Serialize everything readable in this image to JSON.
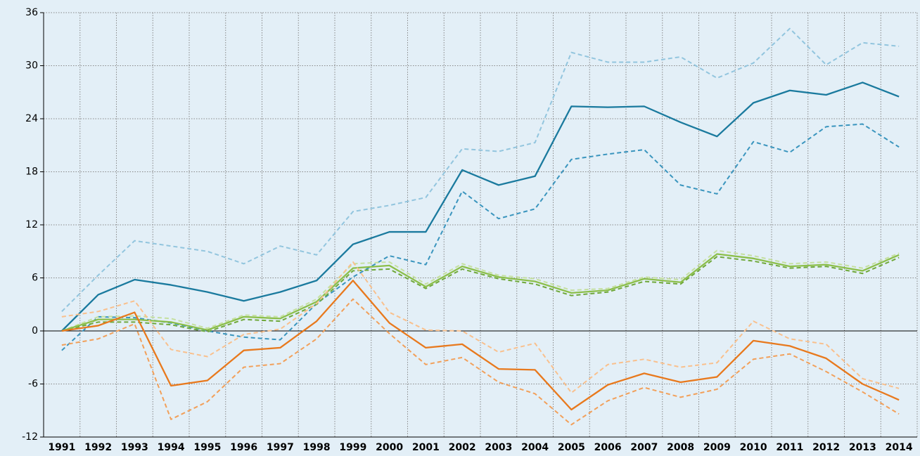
{
  "chart_data": {
    "type": "line",
    "categories": [
      "1991",
      "1992",
      "1993",
      "1994",
      "1995",
      "1996",
      "1997",
      "1998",
      "1999",
      "2000",
      "2001",
      "2002",
      "2003",
      "2004",
      "2005",
      "2006",
      "2007",
      "2008",
      "2009",
      "2010",
      "2011",
      "2012",
      "2013",
      "2014"
    ],
    "series": [
      {
        "color": "#92c5de",
        "dashed": true,
        "values": [
          2.2,
          6.3,
          10.2,
          9.6,
          9.0,
          7.6,
          9.6,
          8.6,
          13.5,
          14.2,
          15.1,
          20.6,
          20.3,
          21.3,
          31.5,
          30.4,
          30.4,
          31.0,
          28.6,
          30.3,
          34.2,
          30.1,
          32.6,
          32.2
        ]
      },
      {
        "color": "#3a95be",
        "dashed": true,
        "values": [
          -2.2,
          1.6,
          1.5,
          0.9,
          0.0,
          -0.7,
          -1.0,
          3.1,
          6.1,
          8.5,
          7.5,
          15.8,
          12.7,
          13.8,
          19.4,
          20.0,
          20.5,
          16.5,
          15.5,
          21.4,
          20.2,
          23.1,
          23.4,
          20.8
        ]
      },
      {
        "color": "#1a7a9e",
        "dashed": false,
        "values": [
          0,
          4.1,
          5.8,
          5.2,
          4.4,
          3.4,
          4.4,
          5.7,
          9.8,
          11.2,
          11.2,
          18.2,
          16.5,
          17.5,
          25.4,
          25.3,
          25.4,
          23.6,
          22.0,
          25.8,
          27.2,
          26.7,
          28.1,
          26.5
        ]
      },
      {
        "color": "#c5e0a0",
        "dashed": true,
        "values": [
          0,
          1.6,
          1.7,
          1.4,
          0.3,
          1.8,
          1.6,
          3.6,
          7.6,
          7.8,
          5.3,
          7.6,
          6.3,
          5.9,
          4.6,
          4.8,
          6.1,
          5.8,
          9.1,
          8.5,
          7.6,
          7.8,
          7.1,
          8.8
        ]
      },
      {
        "color": "#6fa83a",
        "dashed": true,
        "values": [
          0,
          1.0,
          1.0,
          0.7,
          -0.1,
          1.3,
          1.1,
          3.0,
          6.8,
          7.0,
          4.8,
          7.0,
          5.9,
          5.3,
          4.0,
          4.4,
          5.6,
          5.3,
          8.4,
          7.9,
          7.1,
          7.3,
          6.5,
          8.3
        ]
      },
      {
        "color": "#8cbf4a",
        "dashed": false,
        "values": [
          0,
          1.3,
          1.3,
          1.0,
          0.1,
          1.6,
          1.4,
          3.3,
          7.1,
          7.4,
          5.0,
          7.3,
          6.1,
          5.6,
          4.3,
          4.6,
          5.9,
          5.5,
          8.7,
          8.2,
          7.3,
          7.5,
          6.8,
          8.6
        ]
      },
      {
        "color": "#f9c08d",
        "dashed": true,
        "values": [
          1.6,
          2.2,
          3.4,
          -2.1,
          -2.9,
          -0.4,
          0.2,
          3.1,
          7.8,
          2.1,
          0.1,
          0.0,
          -2.4,
          -1.4,
          -7.0,
          -3.8,
          -3.2,
          -4.1,
          -3.6,
          1.1,
          -0.9,
          -1.5,
          -5.4,
          -6.5
        ]
      },
      {
        "color": "#f2a05a",
        "dashed": true,
        "values": [
          -1.6,
          -0.9,
          0.8,
          -10.0,
          -8.0,
          -4.1,
          -3.7,
          -0.9,
          3.6,
          -0.3,
          -3.8,
          -3.0,
          -5.8,
          -7.1,
          -10.6,
          -7.9,
          -6.4,
          -7.5,
          -6.6,
          -3.2,
          -2.6,
          -4.6,
          -6.9,
          -9.4
        ]
      },
      {
        "color": "#e8791d",
        "dashed": false,
        "values": [
          0,
          0.6,
          2.1,
          -6.2,
          -5.6,
          -2.2,
          -1.9,
          1.1,
          5.7,
          0.9,
          -1.9,
          -1.5,
          -4.3,
          -4.4,
          -8.9,
          -6.1,
          -4.8,
          -5.8,
          -5.2,
          -1.1,
          -1.7,
          -3.1,
          -6.0,
          -7.8
        ]
      }
    ],
    "ylim": [
      -12,
      36
    ],
    "yticks": [
      -12,
      -6,
      0,
      6,
      12,
      18,
      24,
      30,
      36
    ],
    "grid": true
  }
}
